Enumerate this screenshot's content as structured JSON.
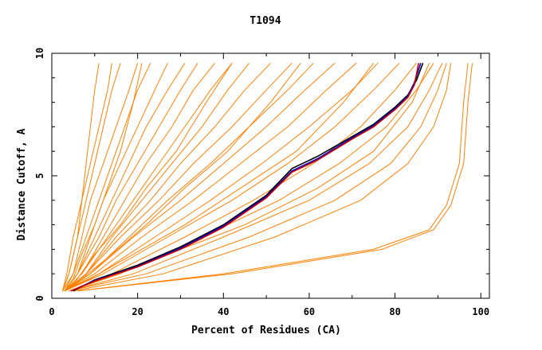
{
  "chart_data": {
    "type": "line",
    "title": "T1094",
    "xlabel": "Percent of Residues (CA)",
    "ylabel": "Distance Cutoff, A",
    "xlim": [
      0,
      102
    ],
    "ylim": [
      0,
      10
    ],
    "x_ticks": [
      "0",
      "20",
      "40",
      "60",
      "80",
      "100"
    ],
    "y_ticks": [
      "0",
      "5",
      "10"
    ],
    "grid": false,
    "legend": "none",
    "colors": {
      "models": "#ff8000",
      "highlight_black": "#000000",
      "highlight_blue": "#0000cc",
      "highlight_red": "#cc0000"
    },
    "series": [
      {
        "color": "#ff8000",
        "x": [
          2.5,
          4,
          6,
          7,
          8,
          9,
          10,
          11
        ],
        "y": [
          0.3,
          1.0,
          2.5,
          4.0,
          5.5,
          7.0,
          8.5,
          9.6
        ]
      },
      {
        "color": "#ff8000",
        "x": [
          2.5,
          4,
          6,
          8,
          10,
          12,
          14,
          16
        ],
        "y": [
          0.3,
          1.0,
          2.5,
          4.0,
          5.5,
          7.0,
          8.5,
          9.6
        ]
      },
      {
        "color": "#ff8000",
        "x": [
          2.5,
          5,
          7,
          9,
          12,
          15,
          18,
          20
        ],
        "y": [
          0.3,
          1.0,
          2.5,
          4.0,
          5.5,
          7.0,
          8.5,
          9.6
        ]
      },
      {
        "color": "#ff8000",
        "x": [
          3,
          5,
          8,
          11,
          14,
          17,
          20,
          23
        ],
        "y": [
          0.3,
          1.0,
          2.5,
          4.0,
          5.5,
          7.0,
          8.5,
          9.6
        ]
      },
      {
        "color": "#ff8000",
        "x": [
          3,
          6,
          9,
          12,
          16,
          20,
          24,
          27
        ],
        "y": [
          0.3,
          1.0,
          2.5,
          4.0,
          5.5,
          7.0,
          8.5,
          9.6
        ]
      },
      {
        "color": "#ff8000",
        "x": [
          3,
          6,
          10,
          14,
          18,
          22,
          27,
          31
        ],
        "y": [
          0.3,
          1.0,
          2.5,
          4.0,
          5.5,
          7.0,
          8.5,
          9.6
        ]
      },
      {
        "color": "#ff8000",
        "x": [
          3,
          6,
          11,
          15,
          20,
          25,
          30,
          34
        ],
        "y": [
          0.3,
          1.0,
          2.5,
          4.0,
          5.5,
          7.0,
          8.5,
          9.6
        ]
      },
      {
        "color": "#ff8000",
        "x": [
          3,
          7,
          12,
          17,
          22,
          28,
          33,
          38
        ],
        "y": [
          0.3,
          1.0,
          2.5,
          4.0,
          5.5,
          7.0,
          8.5,
          9.6
        ]
      },
      {
        "color": "#ff8000",
        "x": [
          3,
          7,
          13,
          19,
          25,
          31,
          37,
          42
        ],
        "y": [
          0.3,
          1.0,
          2.5,
          4.0,
          5.5,
          7.0,
          8.5,
          9.6
        ]
      },
      {
        "color": "#ff8000",
        "x": [
          3,
          8,
          14,
          21,
          28,
          35,
          41,
          46
        ],
        "y": [
          0.3,
          1.0,
          2.5,
          4.0,
          5.5,
          7.0,
          8.5,
          9.6
        ]
      },
      {
        "color": "#ff8000",
        "x": [
          3,
          8,
          15,
          23,
          30,
          38,
          45,
          51
        ],
        "y": [
          0.3,
          1.0,
          2.5,
          4.0,
          5.5,
          7.0,
          8.5,
          9.6
        ]
      },
      {
        "color": "#ff8000",
        "x": [
          3,
          8,
          16,
          25,
          33,
          42,
          50,
          56
        ],
        "y": [
          0.3,
          1.0,
          2.5,
          4.0,
          5.5,
          7.0,
          8.5,
          9.6
        ]
      },
      {
        "color": "#ff8000",
        "x": [
          3,
          9,
          18,
          27,
          37,
          46,
          55,
          61
        ],
        "y": [
          0.3,
          1.0,
          2.5,
          4.0,
          5.5,
          7.0,
          8.5,
          9.6
        ]
      },
      {
        "color": "#ff8000",
        "x": [
          3,
          9,
          19,
          30,
          40,
          50,
          59,
          66
        ],
        "y": [
          0.3,
          1.0,
          2.5,
          4.0,
          5.5,
          7.0,
          8.5,
          9.6
        ]
      },
      {
        "color": "#ff8000",
        "x": [
          3,
          10,
          21,
          33,
          44,
          55,
          64,
          71
        ],
        "y": [
          0.3,
          1.0,
          2.5,
          4.0,
          5.5,
          7.0,
          8.5,
          9.6
        ]
      },
      {
        "color": "#ff8000",
        "x": [
          3,
          11,
          24,
          37,
          49,
          60,
          70,
          76
        ],
        "y": [
          0.3,
          1.0,
          2.5,
          4.0,
          5.5,
          7.0,
          8.5,
          9.6
        ]
      },
      {
        "color": "#ff8000",
        "x": [
          3,
          12,
          27,
          42,
          55,
          66,
          75,
          81
        ],
        "y": [
          0.3,
          1.0,
          2.5,
          4.0,
          5.5,
          7.0,
          8.5,
          9.6
        ]
      },
      {
        "color": "#ff8000",
        "x": [
          4,
          14,
          31,
          47,
          61,
          72,
          80,
          85
        ],
        "y": [
          0.3,
          1.0,
          2.5,
          4.0,
          5.5,
          7.0,
          8.5,
          9.6
        ]
      },
      {
        "color": "#ff8000",
        "x": [
          4,
          16,
          35,
          53,
          67,
          78,
          85,
          89
        ],
        "y": [
          0.3,
          1.0,
          2.5,
          4.0,
          5.5,
          7.0,
          8.5,
          9.6
        ]
      },
      {
        "color": "#ff8000",
        "x": [
          4,
          19,
          40,
          60,
          74,
          83,
          88,
          91
        ],
        "y": [
          0.3,
          1.0,
          2.5,
          4.0,
          5.5,
          7.0,
          8.5,
          9.6
        ]
      },
      {
        "color": "#ff8000",
        "x": [
          4,
          22,
          46,
          66,
          79,
          86,
          90,
          92
        ],
        "y": [
          0.3,
          1.0,
          2.5,
          4.0,
          5.5,
          7.0,
          8.5,
          9.6
        ]
      },
      {
        "color": "#ff8000",
        "x": [
          5,
          26,
          52,
          72,
          83,
          89,
          92,
          93
        ],
        "y": [
          0.3,
          1.0,
          2.5,
          4.0,
          5.5,
          7.0,
          8.5,
          9.6
        ]
      },
      {
        "color": "#ff8000",
        "x": [
          6,
          40,
          75,
          88,
          92,
          95,
          96,
          97
        ],
        "y": [
          0.3,
          1.0,
          2.0,
          2.8,
          3.8,
          5.5,
          8.0,
          9.6
        ]
      },
      {
        "color": "#ff8000",
        "x": [
          6,
          42,
          77,
          89,
          93,
          96,
          97,
          98
        ],
        "y": [
          0.3,
          1.0,
          2.0,
          2.8,
          3.8,
          5.5,
          8.0,
          9.6
        ]
      },
      {
        "color": "#ff8000",
        "x": [
          2.5,
          3.5,
          5,
          7,
          9,
          11,
          13,
          14
        ],
        "y": [
          0.3,
          1.0,
          2.5,
          4.0,
          5.5,
          7.0,
          8.5,
          9.6
        ]
      },
      {
        "color": "#ff8000",
        "x": [
          3,
          5,
          7,
          10,
          13,
          16,
          19,
          21
        ],
        "y": [
          0.3,
          0.8,
          1.8,
          3.0,
          4.5,
          6.0,
          8.0,
          9.6
        ]
      },
      {
        "color": "#ff8000",
        "x": [
          3,
          6,
          10,
          16,
          22,
          29,
          36,
          42
        ],
        "y": [
          0.3,
          0.8,
          1.8,
          3.0,
          4.5,
          6.0,
          8.0,
          9.6
        ]
      },
      {
        "color": "#ff8000",
        "x": [
          3,
          7,
          14,
          22,
          31,
          41,
          51,
          58
        ],
        "y": [
          0.3,
          0.8,
          1.8,
          3.0,
          4.5,
          6.0,
          8.0,
          9.6
        ]
      },
      {
        "color": "#ff8000",
        "x": [
          3,
          9,
          19,
          31,
          44,
          57,
          68,
          75
        ],
        "y": [
          0.3,
          0.8,
          1.8,
          3.0,
          4.5,
          6.0,
          8.0,
          9.6
        ]
      },
      {
        "color": "#ff8000",
        "x": [
          4,
          12,
          27,
          45,
          62,
          75,
          84,
          88
        ],
        "y": [
          0.3,
          0.8,
          1.8,
          3.0,
          4.5,
          6.0,
          8.0,
          9.6
        ]
      },
      {
        "color": "#000000",
        "name": "",
        "x": [
          5,
          10,
          20,
          30,
          40,
          50,
          56,
          62,
          70,
          75,
          80,
          83,
          85,
          86.5
        ],
        "y": [
          0.3,
          0.75,
          1.35,
          2.1,
          3.0,
          4.2,
          5.3,
          5.8,
          6.6,
          7.1,
          7.8,
          8.3,
          8.9,
          9.6
        ]
      },
      {
        "color": "#0000cc",
        "x": [
          4.5,
          10,
          20,
          30,
          40,
          50,
          56,
          62,
          70,
          75,
          80,
          83,
          84.5,
          86
        ],
        "y": [
          0.3,
          0.72,
          1.3,
          2.05,
          2.95,
          4.15,
          5.2,
          5.7,
          6.55,
          7.05,
          7.75,
          8.25,
          8.8,
          9.6
        ]
      },
      {
        "color": "#cc0000",
        "x": [
          4.5,
          10,
          20,
          30,
          40,
          50,
          56,
          62,
          70,
          75,
          80,
          83,
          84.5,
          85.5
        ],
        "y": [
          0.3,
          0.7,
          1.28,
          2.0,
          2.9,
          4.1,
          5.15,
          5.65,
          6.5,
          7.0,
          7.7,
          8.2,
          8.7,
          9.6
        ]
      }
    ]
  }
}
